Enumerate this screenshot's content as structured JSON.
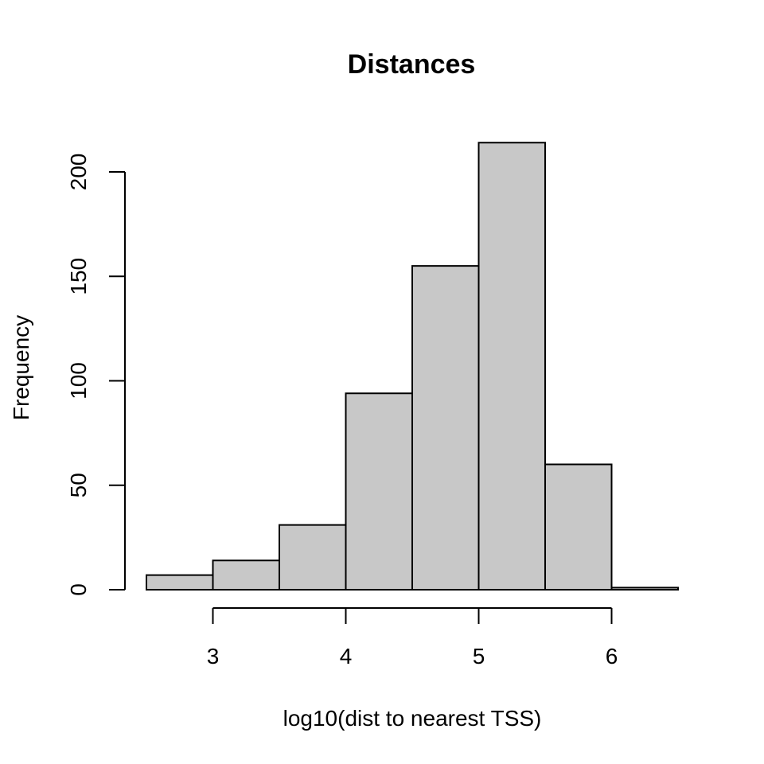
{
  "chart_data": {
    "type": "bar",
    "subtype": "histogram",
    "title": "Distances",
    "xlabel": "log10(dist to nearest TSS)",
    "ylabel": "Frequency",
    "bins": [
      {
        "start": 2.5,
        "end": 3.0,
        "count": 7
      },
      {
        "start": 3.0,
        "end": 3.5,
        "count": 14
      },
      {
        "start": 3.5,
        "end": 4.0,
        "count": 31
      },
      {
        "start": 4.0,
        "end": 4.5,
        "count": 94
      },
      {
        "start": 4.5,
        "end": 5.0,
        "count": 155
      },
      {
        "start": 5.0,
        "end": 5.5,
        "count": 214
      },
      {
        "start": 5.5,
        "end": 6.0,
        "count": 60
      },
      {
        "start": 6.0,
        "end": 6.5,
        "count": 1
      }
    ],
    "categories": [
      "2.5-3",
      "3-3.5",
      "3.5-4",
      "4-4.5",
      "4.5-5",
      "5-5.5",
      "5.5-6",
      "6-6.5"
    ],
    "values": [
      7,
      14,
      31,
      94,
      155,
      214,
      60,
      1
    ],
    "x_ticks": [
      "3",
      "4",
      "5",
      "6"
    ],
    "x_tick_values": [
      3,
      4,
      5,
      6
    ],
    "y_ticks": [
      "0",
      "50",
      "100",
      "150",
      "200"
    ],
    "y_tick_values": [
      0,
      50,
      100,
      150,
      200
    ],
    "xlim": [
      2.5,
      6.5
    ],
    "ylim": [
      0,
      214
    ],
    "grid": false,
    "legend": null,
    "bar_fill": "#c8c8c8",
    "bar_stroke": "#000000"
  }
}
